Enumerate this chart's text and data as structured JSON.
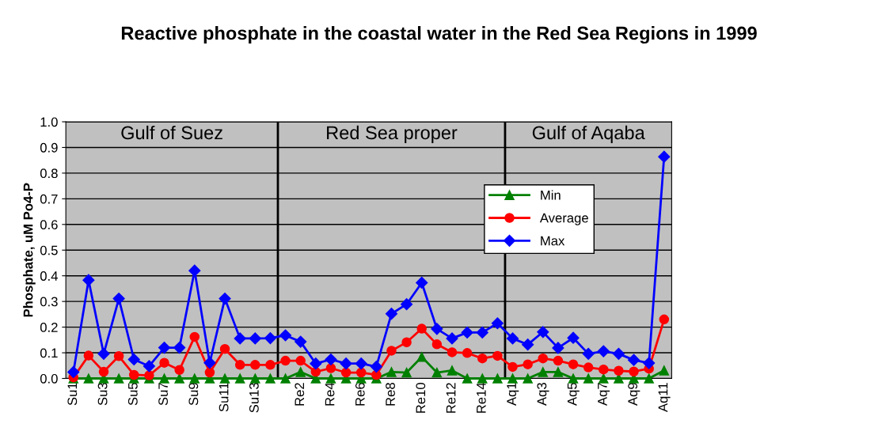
{
  "chart_data": {
    "type": "line",
    "title": "Reactive phosphate in the coastal water in the Red Sea Regions in 1999",
    "ylabel": "Phosphate, uM Po4-P",
    "categories": [
      "Su1",
      null,
      "Su3",
      null,
      "Su5",
      null,
      "Su7",
      null,
      "Su9",
      null,
      "Su11",
      null,
      "Su13",
      null,
      null,
      "Re2",
      null,
      "Re4",
      null,
      "Re6",
      null,
      "Re8",
      null,
      "Re10",
      null,
      "Re12",
      null,
      "Re14",
      null,
      "Aq1",
      null,
      "Aq3",
      null,
      "Aq5",
      null,
      "Aq7",
      null,
      "Aq9",
      null,
      "Aq11"
    ],
    "series": [
      {
        "name": "Min",
        "color": "#008000",
        "marker": "triangle",
        "values": [
          0,
          0,
          0,
          0,
          0,
          0,
          0,
          0,
          0,
          0,
          0,
          0,
          0,
          0,
          0,
          0.025,
          0,
          0,
          0,
          0,
          0,
          0.025,
          0.023,
          0.084,
          0.023,
          0.031,
          0,
          0,
          0,
          0,
          0,
          0.025,
          0.025,
          0,
          0,
          0,
          0,
          0,
          0,
          0.031
        ]
      },
      {
        "name": "Average",
        "color": "#ff0000",
        "marker": "circle",
        "values": [
          0.004,
          0.089,
          0.026,
          0.087,
          0.014,
          0.012,
          0.061,
          0.033,
          0.162,
          0.023,
          0.115,
          0.053,
          0.053,
          0.053,
          0.069,
          0.069,
          0.026,
          0.04,
          0.023,
          0.023,
          0.014,
          0.108,
          0.141,
          0.194,
          0.133,
          0.102,
          0.099,
          0.078,
          0.088,
          0.045,
          0.055,
          0.078,
          0.069,
          0.055,
          0.043,
          0.035,
          0.03,
          0.027,
          0.038,
          0.23
        ]
      },
      {
        "name": "Max",
        "color": "#0000ff",
        "marker": "diamond",
        "values": [
          0.025,
          0.383,
          0.096,
          0.311,
          0.074,
          0.048,
          0.12,
          0.12,
          0.42,
          0.061,
          0.311,
          0.156,
          0.156,
          0.157,
          0.168,
          0.143,
          0.058,
          0.074,
          0.058,
          0.058,
          0.046,
          0.252,
          0.289,
          0.373,
          0.193,
          0.156,
          0.179,
          0.179,
          0.215,
          0.156,
          0.132,
          0.181,
          0.119,
          0.158,
          0.096,
          0.106,
          0.096,
          0.072,
          0.06,
          0.864
        ]
      }
    ],
    "ylim": [
      0,
      1
    ],
    "yticks": [
      {
        "value": 0,
        "label": "0.0"
      },
      {
        "value": 0.1,
        "label": "0.1"
      },
      {
        "value": 0.2,
        "label": "0.2"
      },
      {
        "value": 0.3,
        "label": "0.3"
      },
      {
        "value": 0.4,
        "label": "0.4"
      },
      {
        "value": 0.5,
        "label": "0.5"
      },
      {
        "value": 0.6,
        "label": "0.6"
      },
      {
        "value": 0.7,
        "label": "0.7"
      },
      {
        "value": 0.8,
        "label": "0.8"
      },
      {
        "value": 0.9,
        "label": "0.9"
      },
      {
        "value": 1,
        "label": "1.0"
      }
    ],
    "annotations": [
      "Gulf of Suez",
      "Red Sea proper",
      "Gulf of Aqaba"
    ],
    "grid": "y",
    "legend": "right",
    "line_style": "solid"
  }
}
